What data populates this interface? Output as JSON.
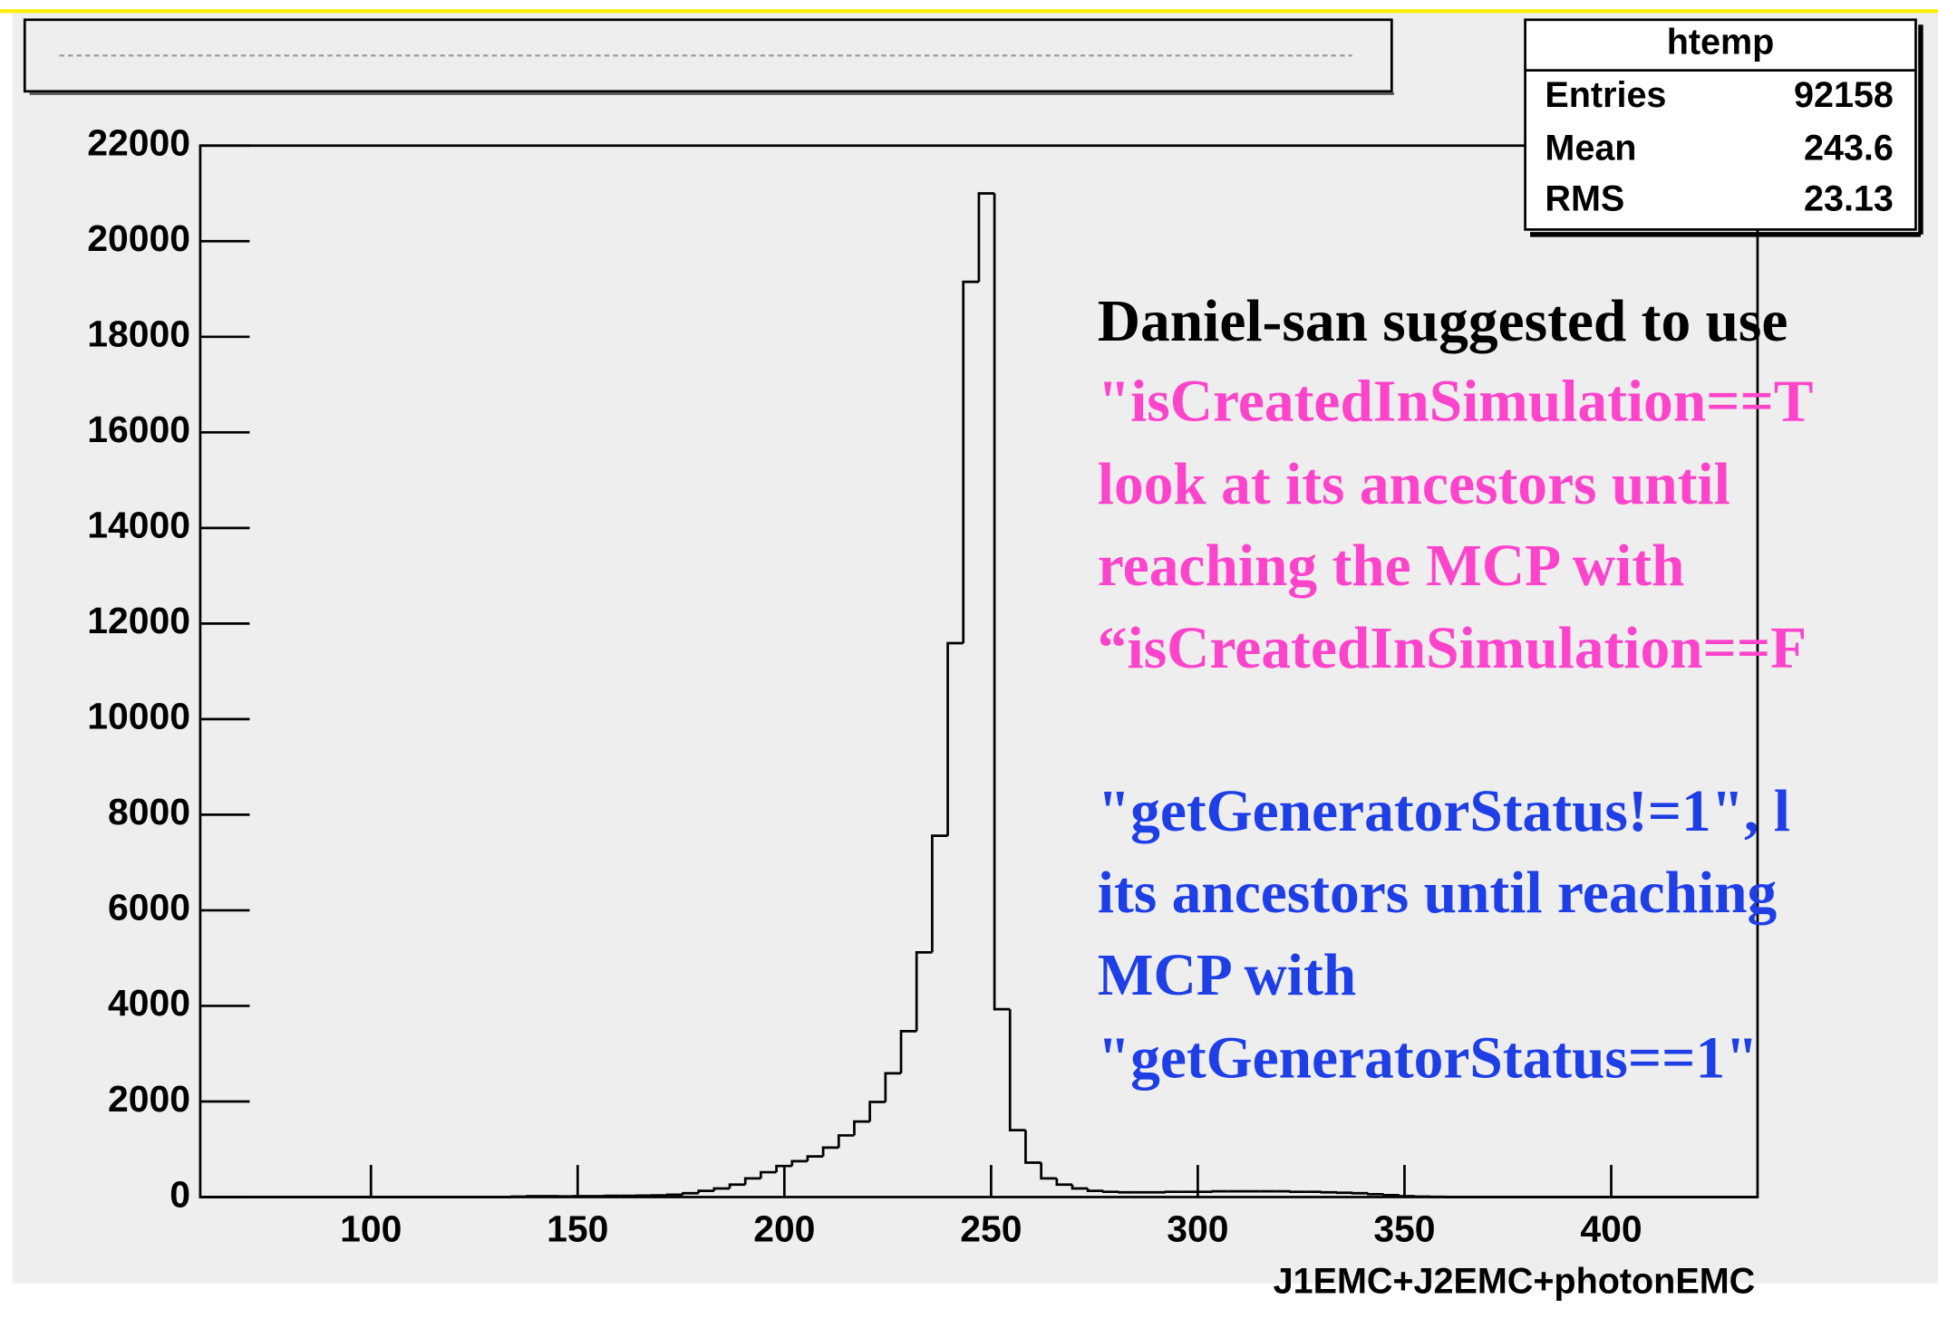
{
  "chart_data": {
    "type": "histogram",
    "xlabel": "J1EMC+J2EMC+photonEMC",
    "xlim": [
      58.7,
      435.4
    ],
    "ylim": [
      0,
      22000
    ],
    "xticks": [
      100,
      150,
      200,
      250,
      300,
      350,
      400
    ],
    "yticks": [
      0,
      2000,
      4000,
      6000,
      8000,
      10000,
      12000,
      14000,
      16000,
      18000,
      20000,
      22000
    ],
    "color": "#000000",
    "bins": [
      58.7,
      62.47,
      66.23,
      70.0,
      73.77,
      77.54,
      81.3,
      85.07,
      88.84,
      92.6,
      96.37,
      100.14,
      103.9,
      107.67,
      111.44,
      115.21,
      118.97,
      122.74,
      126.51,
      130.27,
      134.04,
      137.81,
      141.57,
      145.34,
      149.11,
      152.88,
      156.64,
      160.41,
      164.18,
      167.94,
      171.71,
      175.48,
      179.24,
      183.01,
      186.78,
      190.55,
      194.31,
      198.08,
      201.85,
      205.61,
      209.38,
      213.15,
      216.91,
      220.68,
      224.45,
      228.22,
      231.98,
      235.75,
      239.52,
      243.28,
      247.05,
      250.82,
      254.58,
      258.35,
      262.12,
      265.89,
      269.65,
      273.42,
      277.19,
      280.95,
      284.72,
      288.49,
      292.25,
      296.02,
      299.79,
      303.56,
      307.32,
      311.09,
      314.86,
      318.62,
      322.39,
      326.16,
      329.92,
      333.69,
      337.46,
      341.23,
      344.99,
      348.76,
      352.53,
      356.29,
      360.06,
      363.83,
      367.59,
      371.36,
      375.13,
      378.9,
      382.66,
      386.43,
      390.2,
      393.96,
      397.73,
      401.5,
      405.26,
      409.03,
      412.8,
      416.57,
      420.33,
      424.1,
      427.87,
      431.63,
      435.4
    ],
    "counts": [
      0,
      0,
      0,
      0,
      0,
      0,
      0,
      0,
      0,
      0,
      0,
      0,
      0,
      0,
      0,
      0,
      0,
      0,
      0,
      0,
      10,
      20,
      20,
      15,
      20,
      20,
      25,
      25,
      30,
      35,
      50,
      80,
      130,
      180,
      260,
      390,
      520,
      650,
      750,
      850,
      1035,
      1290,
      1580,
      1990,
      2590,
      3470,
      5120,
      7560,
      11590,
      19150,
      21000,
      3930,
      1400,
      720,
      390,
      260,
      180,
      130,
      110,
      100,
      100,
      100,
      110,
      110,
      110,
      120,
      120,
      120,
      120,
      120,
      110,
      110,
      100,
      90,
      80,
      60,
      40,
      20,
      10,
      5,
      0,
      0,
      0,
      0,
      0,
      0,
      0,
      0,
      0,
      0,
      0,
      0,
      0,
      0,
      0,
      0,
      0,
      0,
      0,
      0
    ],
    "stats": {
      "title": "htemp",
      "rows": [
        [
          "Entries",
          92158
        ],
        [
          "Mean",
          243.6
        ],
        [
          "RMS",
          23.13
        ]
      ]
    },
    "annotations": [
      {
        "text": "Daniel-san suggested to use",
        "color": "#000000"
      },
      {
        "text": "\"isCreatedInSimulation==T",
        "color": "#ff44cc"
      },
      {
        "text": "look at its ancestors until",
        "color": "#ff44cc"
      },
      {
        "text": "reaching the MCP with",
        "color": "#ff44cc"
      },
      {
        "text": "“isCreatedInSimulation==F",
        "color": "#ff44cc"
      },
      {
        "text": "\"getGeneratorStatus!=1\", l",
        "color": "#1e3ee6"
      },
      {
        "text": "its ancestors until reaching",
        "color": "#1e3ee6"
      },
      {
        "text": "MCP with",
        "color": "#1e3ee6"
      },
      {
        "text": "\"getGeneratorStatus==1\"",
        "color": "#1e3ee6"
      }
    ]
  }
}
